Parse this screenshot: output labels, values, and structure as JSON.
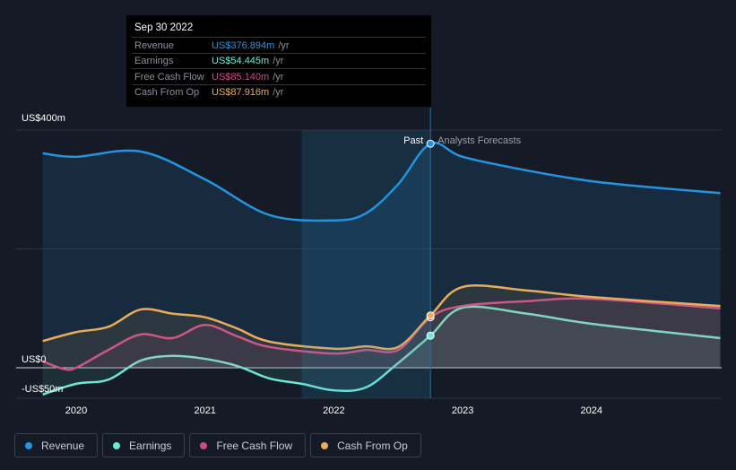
{
  "chart_data": {
    "type": "line",
    "xlim": [
      2019.6,
      2025.0
    ],
    "ylim": [
      -50,
      400
    ],
    "ytick_labels": [
      {
        "v": 400,
        "label": "US$400m"
      },
      {
        "v": 0,
        "label": "US$0"
      },
      {
        "v": -50,
        "label": "-US$50m"
      }
    ],
    "xticks": [
      {
        "v": 2020,
        "label": "2020"
      },
      {
        "v": 2021,
        "label": "2021"
      },
      {
        "v": 2022,
        "label": "2022"
      },
      {
        "v": 2023,
        "label": "2023"
      },
      {
        "v": 2024,
        "label": "2024"
      }
    ],
    "past_label": "Past",
    "forecast_label": "Analysts Forecasts",
    "divider_x": 2022.75,
    "highlight_start": 2021.75,
    "series": [
      {
        "name": "Revenue",
        "color": "#2394df",
        "points": [
          [
            2019.74,
            361
          ],
          [
            2020,
            355
          ],
          [
            2020.5,
            364
          ],
          [
            2021,
            317
          ],
          [
            2021.5,
            257
          ],
          [
            2022,
            248
          ],
          [
            2022.25,
            260
          ],
          [
            2022.5,
            309
          ],
          [
            2022.75,
            377
          ],
          [
            2023,
            355
          ],
          [
            2023.5,
            332
          ],
          [
            2024,
            314
          ],
          [
            2024.5,
            303
          ],
          [
            2025,
            294
          ]
        ]
      },
      {
        "name": "Earnings",
        "color": "#6ee8d6",
        "points": [
          [
            2019.74,
            -45
          ],
          [
            2020,
            -27
          ],
          [
            2020.25,
            -20
          ],
          [
            2020.5,
            12
          ],
          [
            2020.75,
            20
          ],
          [
            2021,
            15
          ],
          [
            2021.25,
            3
          ],
          [
            2021.5,
            -18
          ],
          [
            2021.75,
            -27
          ],
          [
            2022,
            -38
          ],
          [
            2022.25,
            -33
          ],
          [
            2022.5,
            8
          ],
          [
            2022.75,
            54
          ],
          [
            2023,
            101
          ],
          [
            2023.5,
            91
          ],
          [
            2024,
            74
          ],
          [
            2025,
            50
          ]
        ]
      },
      {
        "name": "Free Cash Flow",
        "color": "#c94d8b",
        "points": [
          [
            2019.74,
            11
          ],
          [
            2019.9,
            -2
          ],
          [
            2020,
            0
          ],
          [
            2020.25,
            30
          ],
          [
            2020.5,
            56
          ],
          [
            2020.75,
            50
          ],
          [
            2021,
            72
          ],
          [
            2021.25,
            53
          ],
          [
            2021.5,
            35
          ],
          [
            2022,
            24
          ],
          [
            2022.25,
            30
          ],
          [
            2022.5,
            30
          ],
          [
            2022.75,
            85
          ],
          [
            2023,
            104
          ],
          [
            2023.5,
            112
          ],
          [
            2024,
            116
          ],
          [
            2025,
            100
          ]
        ]
      },
      {
        "name": "Cash From Op",
        "color": "#e8ac5a",
        "points": [
          [
            2019.74,
            45
          ],
          [
            2020,
            60
          ],
          [
            2020.25,
            69
          ],
          [
            2020.5,
            98
          ],
          [
            2020.75,
            91
          ],
          [
            2021,
            85
          ],
          [
            2021.25,
            66
          ],
          [
            2021.5,
            44
          ],
          [
            2022,
            32
          ],
          [
            2022.25,
            36
          ],
          [
            2022.5,
            35
          ],
          [
            2022.75,
            88
          ],
          [
            2023,
            136
          ],
          [
            2023.5,
            130
          ],
          [
            2024,
            119
          ],
          [
            2025,
            104
          ]
        ]
      }
    ]
  },
  "tooltip": {
    "date": "Sep 30 2022",
    "unit": "/yr",
    "rows": [
      {
        "label": "Revenue",
        "value": "US$376.894m",
        "color": "#2394df"
      },
      {
        "label": "Earnings",
        "value": "US$54.445m",
        "color": "#6ee8d6"
      },
      {
        "label": "Free Cash Flow",
        "value": "US$85.140m",
        "color": "#c94d8b"
      },
      {
        "label": "Cash From Op",
        "value": "US$87.916m",
        "color": "#e8ac5a"
      }
    ]
  },
  "legend": [
    {
      "label": "Revenue",
      "color": "#2394df"
    },
    {
      "label": "Earnings",
      "color": "#6ee8d6"
    },
    {
      "label": "Free Cash Flow",
      "color": "#c94d8b"
    },
    {
      "label": "Cash From Op",
      "color": "#e8ac5a"
    }
  ]
}
